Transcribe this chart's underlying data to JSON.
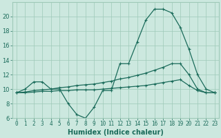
{
  "xlabel": "Humidex (Indice chaleur)",
  "x_values": [
    0,
    1,
    2,
    3,
    4,
    5,
    6,
    7,
    8,
    9,
    10,
    11,
    12,
    13,
    14,
    15,
    16,
    17,
    18,
    19,
    20,
    21,
    22,
    23
  ],
  "line1": [
    9.5,
    10,
    11,
    11,
    10,
    10,
    8,
    6.5,
    6.0,
    7.5,
    9.8,
    9.8,
    13.5,
    13.5,
    16.5,
    19.5,
    21,
    21,
    20.5,
    18.5,
    15.5,
    12,
    10,
    9.5
  ],
  "line2": [
    9.5,
    9.6,
    9.8,
    9.9,
    10.0,
    10.2,
    10.3,
    10.5,
    10.6,
    10.7,
    10.9,
    11.1,
    11.4,
    11.6,
    11.9,
    12.2,
    12.6,
    13.0,
    13.5,
    13.5,
    12,
    10,
    9.5,
    9.5
  ],
  "line3": [
    9.5,
    9.5,
    9.6,
    9.7,
    9.7,
    9.8,
    9.8,
    9.9,
    9.9,
    9.9,
    10.0,
    10.1,
    10.2,
    10.3,
    10.4,
    10.5,
    10.7,
    10.9,
    11.1,
    11.3,
    10.5,
    9.8,
    9.5,
    9.5
  ],
  "line_color": "#1a6b5a",
  "bg_color": "#cce8df",
  "grid_color": "#9ec9b8",
  "ylim": [
    6,
    22
  ],
  "xlim": [
    -0.5,
    23.5
  ],
  "yticks": [
    6,
    8,
    10,
    12,
    14,
    16,
    18,
    20
  ],
  "xticks": [
    0,
    1,
    2,
    3,
    4,
    5,
    6,
    7,
    8,
    9,
    10,
    11,
    12,
    13,
    14,
    15,
    16,
    17,
    18,
    19,
    20,
    21,
    22,
    23
  ],
  "tick_fontsize": 5.5,
  "xlabel_fontsize": 7
}
